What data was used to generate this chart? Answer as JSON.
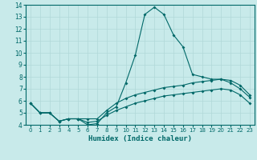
{
  "title": "",
  "xlabel": "Humidex (Indice chaleur)",
  "ylabel": "",
  "xlim": [
    -0.5,
    23.5
  ],
  "ylim": [
    4,
    14
  ],
  "xticks": [
    0,
    1,
    2,
    3,
    4,
    5,
    6,
    7,
    8,
    9,
    10,
    11,
    12,
    13,
    14,
    15,
    16,
    17,
    18,
    19,
    20,
    21,
    22,
    23
  ],
  "yticks": [
    4,
    5,
    6,
    7,
    8,
    9,
    10,
    11,
    12,
    13,
    14
  ],
  "background_color": "#c8eaea",
  "grid_color": "#b0d8d8",
  "line_color": "#006868",
  "line1_x": [
    0,
    1,
    2,
    3,
    4,
    5,
    6,
    7,
    8,
    9,
    10,
    11,
    12,
    13,
    14,
    15,
    16,
    17,
    18,
    19,
    20,
    21,
    22,
    23
  ],
  "line1_y": [
    5.8,
    5.0,
    5.0,
    4.3,
    4.5,
    4.5,
    4.0,
    4.1,
    5.0,
    5.5,
    7.5,
    9.8,
    13.2,
    13.8,
    13.2,
    11.5,
    10.5,
    8.2,
    8.0,
    7.8,
    7.8,
    7.5,
    7.0,
    6.3
  ],
  "line2_x": [
    0,
    1,
    2,
    3,
    4,
    5,
    6,
    7,
    8,
    9,
    10,
    11,
    12,
    13,
    14,
    15,
    16,
    17,
    18,
    19,
    20,
    21,
    22,
    23
  ],
  "line2_y": [
    5.8,
    5.0,
    5.0,
    4.3,
    4.5,
    4.5,
    4.5,
    4.5,
    5.2,
    5.8,
    6.2,
    6.5,
    6.7,
    6.9,
    7.1,
    7.2,
    7.3,
    7.5,
    7.6,
    7.7,
    7.8,
    7.7,
    7.3,
    6.5
  ],
  "line3_x": [
    0,
    1,
    2,
    3,
    4,
    5,
    6,
    7,
    8,
    9,
    10,
    11,
    12,
    13,
    14,
    15,
    16,
    17,
    18,
    19,
    20,
    21,
    22,
    23
  ],
  "line3_y": [
    5.8,
    5.0,
    5.0,
    4.3,
    4.5,
    4.5,
    4.2,
    4.3,
    4.8,
    5.2,
    5.5,
    5.8,
    6.0,
    6.2,
    6.4,
    6.5,
    6.6,
    6.7,
    6.8,
    6.9,
    7.0,
    6.9,
    6.5,
    5.8
  ]
}
